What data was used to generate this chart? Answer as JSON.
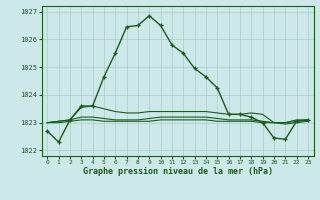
{
  "title": "Graphe pression niveau de la mer (hPa)",
  "xlim": [
    -0.5,
    23.5
  ],
  "ylim": [
    1021.8,
    1027.2
  ],
  "yticks": [
    1022,
    1023,
    1024,
    1025,
    1026,
    1027
  ],
  "xticks": [
    0,
    1,
    2,
    3,
    4,
    5,
    6,
    7,
    8,
    9,
    10,
    11,
    12,
    13,
    14,
    15,
    16,
    17,
    18,
    19,
    20,
    21,
    22,
    23
  ],
  "bg_color": "#cce8e8",
  "grid_color": "#aacccc",
  "line_color": "#1a5c1a",
  "line1_x": [
    0,
    1,
    2,
    3,
    4,
    5,
    6,
    7,
    8,
    9,
    10,
    11,
    12,
    13,
    14,
    15,
    16,
    17,
    18,
    19,
    20,
    21,
    22,
    23
  ],
  "line1_y": [
    1022.7,
    1022.3,
    1023.1,
    1023.6,
    1023.6,
    1024.65,
    1025.5,
    1026.45,
    1026.5,
    1026.85,
    1026.5,
    1025.8,
    1025.5,
    1024.95,
    1024.65,
    1024.25,
    1023.3,
    1023.3,
    1023.2,
    1023.0,
    1022.45,
    1022.4,
    1023.05,
    1023.1
  ],
  "line2_x": [
    0,
    1,
    2,
    3,
    4,
    5,
    6,
    7,
    8,
    9,
    10,
    11,
    12,
    13,
    14,
    15,
    16,
    17,
    18,
    19,
    20,
    21,
    22,
    23
  ],
  "line2_y": [
    1023.0,
    1023.05,
    1023.1,
    1023.55,
    1023.6,
    1023.5,
    1023.4,
    1023.35,
    1023.35,
    1023.4,
    1023.4,
    1023.4,
    1023.4,
    1023.4,
    1023.4,
    1023.35,
    1023.3,
    1023.3,
    1023.35,
    1023.3,
    1023.0,
    1023.0,
    1023.1,
    1023.1
  ],
  "line3_x": [
    0,
    1,
    2,
    3,
    4,
    5,
    6,
    7,
    8,
    9,
    10,
    11,
    12,
    13,
    14,
    15,
    16,
    17,
    18,
    19,
    20,
    21,
    22,
    23
  ],
  "line3_y": [
    1023.0,
    1023.05,
    1023.1,
    1023.2,
    1023.2,
    1023.15,
    1023.1,
    1023.1,
    1023.1,
    1023.15,
    1023.2,
    1023.2,
    1023.2,
    1023.2,
    1023.2,
    1023.15,
    1023.1,
    1023.1,
    1023.1,
    1023.05,
    1023.0,
    1023.0,
    1023.05,
    1023.1
  ],
  "line4_x": [
    0,
    1,
    2,
    3,
    4,
    5,
    6,
    7,
    8,
    9,
    10,
    11,
    12,
    13,
    14,
    15,
    16,
    17,
    18,
    19,
    20,
    21,
    22,
    23
  ],
  "line4_y": [
    1023.0,
    1023.0,
    1023.05,
    1023.1,
    1023.1,
    1023.05,
    1023.05,
    1023.05,
    1023.05,
    1023.05,
    1023.1,
    1023.1,
    1023.1,
    1023.1,
    1023.1,
    1023.05,
    1023.05,
    1023.05,
    1023.05,
    1023.0,
    1023.0,
    1022.95,
    1023.0,
    1023.05
  ]
}
